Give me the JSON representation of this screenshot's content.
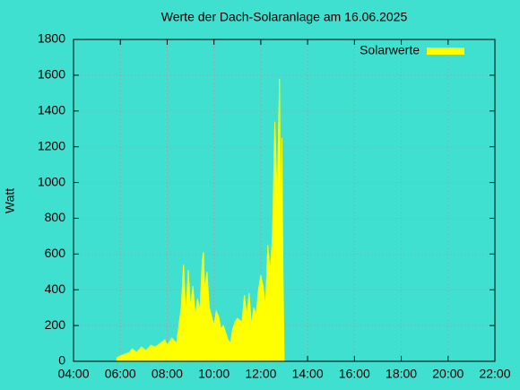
{
  "chart_data": {
    "type": "area",
    "title": "Werte der Dach-Solaranlage am 16.06.2025",
    "y_label": "Watt",
    "series": [
      {
        "name": "Solarwerte",
        "color": "#ffff00",
        "x": [
          5.85,
          6.0,
          6.2,
          6.4,
          6.5,
          6.7,
          6.9,
          7.1,
          7.3,
          7.5,
          7.7,
          7.9,
          8.0,
          8.2,
          8.4,
          8.5,
          8.6,
          8.7,
          8.8,
          8.9,
          9.0,
          9.1,
          9.2,
          9.3,
          9.4,
          9.5,
          9.55,
          9.6,
          9.7,
          9.8,
          9.9,
          10.0,
          10.1,
          10.2,
          10.3,
          10.4,
          10.5,
          10.6,
          10.7,
          10.8,
          10.9,
          11.0,
          11.1,
          11.2,
          11.3,
          11.4,
          11.5,
          11.6,
          11.7,
          11.8,
          11.9,
          12.0,
          12.1,
          12.2,
          12.3,
          12.4,
          12.5,
          12.6,
          12.7,
          12.8,
          12.85,
          12.9,
          12.95,
          13.0
        ],
        "values": [
          20,
          30,
          40,
          50,
          70,
          50,
          80,
          60,
          90,
          80,
          100,
          120,
          90,
          130,
          100,
          200,
          300,
          540,
          250,
          510,
          300,
          420,
          250,
          350,
          280,
          560,
          610,
          400,
          500,
          300,
          250,
          200,
          280,
          250,
          180,
          200,
          160,
          120,
          100,
          180,
          220,
          240,
          230,
          220,
          370,
          250,
          380,
          200,
          300,
          260,
          400,
          480,
          420,
          300,
          650,
          500,
          700,
          1340,
          900,
          1580,
          600,
          1250,
          470,
          0
        ]
      }
    ],
    "xlim": [
      4,
      22
    ],
    "xticks": [
      {
        "value": 4,
        "label": "04:00"
      },
      {
        "value": 6,
        "label": "06:00"
      },
      {
        "value": 8,
        "label": "08:00"
      },
      {
        "value": 10,
        "label": "10:00"
      },
      {
        "value": 12,
        "label": "12:00"
      },
      {
        "value": 14,
        "label": "14:00"
      },
      {
        "value": 16,
        "label": "16:00"
      },
      {
        "value": 18,
        "label": "18:00"
      },
      {
        "value": 20,
        "label": "20:00"
      },
      {
        "value": 22,
        "label": "22:00"
      }
    ],
    "ylim": [
      0,
      1800
    ],
    "yticks": [
      0,
      200,
      400,
      600,
      800,
      1000,
      1200,
      1400,
      1600,
      1800
    ],
    "grid": true,
    "legend": "top-right"
  }
}
